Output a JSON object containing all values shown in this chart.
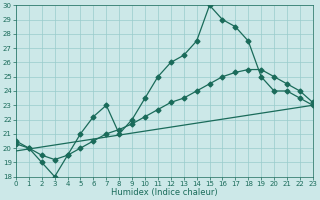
{
  "xlabel": "Humidex (Indice chaleur)",
  "background_color": "#cce8e8",
  "grid_color": "#99cccc",
  "line_color": "#1a6b5a",
  "ylim": [
    18,
    30
  ],
  "xlim": [
    0,
    23
  ],
  "yticks": [
    18,
    19,
    20,
    21,
    22,
    23,
    24,
    25,
    26,
    27,
    28,
    29,
    30
  ],
  "xticks": [
    0,
    1,
    2,
    3,
    4,
    5,
    6,
    7,
    8,
    9,
    10,
    11,
    12,
    13,
    14,
    15,
    16,
    17,
    18,
    19,
    20,
    21,
    22,
    23
  ],
  "curve1_x": [
    0,
    1,
    2,
    3,
    4,
    5,
    6,
    7,
    8,
    9,
    10,
    11,
    12,
    13,
    14,
    15,
    16,
    17,
    18,
    19,
    20,
    21,
    22,
    23
  ],
  "curve1_y": [
    20.5,
    20.0,
    19.0,
    18.0,
    19.5,
    21.0,
    22.2,
    23.0,
    21.0,
    22.0,
    23.5,
    25.0,
    26.0,
    26.5,
    27.5,
    30.0,
    29.0,
    28.5,
    27.5,
    25.0,
    24.0,
    24.0,
    23.5,
    23.0
  ],
  "curve2_x": [
    0,
    1,
    2,
    3,
    4,
    5,
    6,
    7,
    8,
    9,
    10,
    11,
    12,
    13,
    14,
    15,
    16,
    17,
    18,
    19,
    20,
    21,
    22,
    23
  ],
  "curve2_y": [
    20.3,
    20.0,
    19.5,
    19.2,
    19.5,
    20.0,
    20.5,
    21.0,
    21.3,
    21.7,
    22.2,
    22.7,
    23.2,
    23.5,
    24.0,
    24.5,
    25.0,
    25.3,
    25.5,
    25.5,
    25.0,
    24.5,
    24.0,
    23.2
  ],
  "curve3_x": [
    0,
    23
  ],
  "curve3_y": [
    19.8,
    23.0
  ],
  "marker": "D",
  "marker_size": 2.5,
  "line_width": 0.9,
  "tick_fontsize": 5,
  "xlabel_fontsize": 6
}
